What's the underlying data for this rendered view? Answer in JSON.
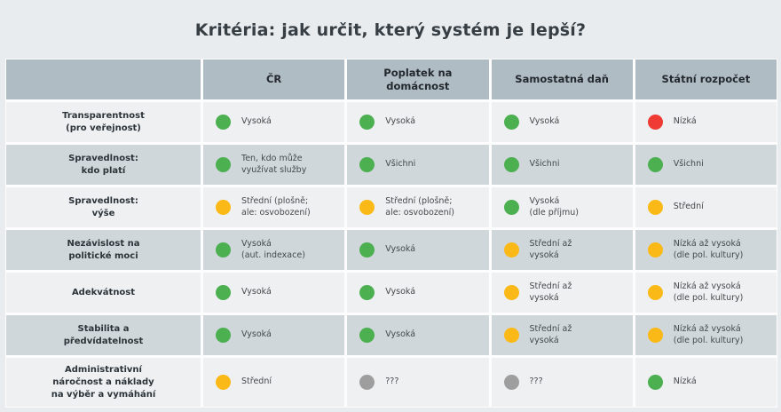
{
  "chart_data": {
    "type": "table",
    "title": "Kritéria: jak určit, který systém je lepší?",
    "columns": [
      "",
      "ČR",
      "Poplatek na\ndomácnost",
      "Samostatná daň",
      "Státní rozpočet"
    ],
    "legend_colors": {
      "green": "#4caf50",
      "yellow": "#fbb917",
      "red": "#ef3b33",
      "gray": "#9e9e9e"
    },
    "rows": [
      {
        "label": "Transparentnost\n(pro veřejnost)",
        "cells": [
          {
            "rating": "green",
            "text": "Vysoká"
          },
          {
            "rating": "green",
            "text": "Vysoká"
          },
          {
            "rating": "green",
            "text": "Vysoká"
          },
          {
            "rating": "red",
            "text": "Nízká"
          }
        ]
      },
      {
        "label": "Spravedlnost:\nkdo platí",
        "cells": [
          {
            "rating": "green",
            "text": "Ten, kdo může\nvyužívat služby"
          },
          {
            "rating": "green",
            "text": "Všichni"
          },
          {
            "rating": "green",
            "text": "Všichni"
          },
          {
            "rating": "green",
            "text": "Všichni"
          }
        ]
      },
      {
        "label": "Spravedlnost:\nvýše",
        "cells": [
          {
            "rating": "yellow",
            "text": "Střední (plošně;\nale: osvobození)"
          },
          {
            "rating": "yellow",
            "text": "Střední (plošně;\nale: osvobození)"
          },
          {
            "rating": "green",
            "text": "Vysoká\n(dle příjmu)"
          },
          {
            "rating": "yellow",
            "text": "Střední"
          }
        ]
      },
      {
        "label": "Nezávislost na\npolitické moci",
        "cells": [
          {
            "rating": "green",
            "text": "Vysoká\n(aut. indexace)"
          },
          {
            "rating": "green",
            "text": "Vysoká"
          },
          {
            "rating": "yellow",
            "text": "Střední až\nvysoká"
          },
          {
            "rating": "yellow",
            "text": "Nízká až vysoká\n(dle pol. kultury)"
          }
        ]
      },
      {
        "label": "Adekvátnost",
        "cells": [
          {
            "rating": "green",
            "text": "Vysoká"
          },
          {
            "rating": "green",
            "text": "Vysoká"
          },
          {
            "rating": "yellow",
            "text": "Střední až\nvysoká"
          },
          {
            "rating": "yellow",
            "text": "Nízká až vysoká\n(dle pol. kultury)"
          }
        ]
      },
      {
        "label": "Stabilita a\npředvídatelnost",
        "cells": [
          {
            "rating": "green",
            "text": "Vysoká"
          },
          {
            "rating": "green",
            "text": "Vysoká"
          },
          {
            "rating": "yellow",
            "text": "Střední až\nvysoká"
          },
          {
            "rating": "yellow",
            "text": "Nízká až vysoká\n(dle pol. kultury)"
          }
        ]
      },
      {
        "label": "Administrativní\nnáročnost a náklady\nna výběr a vymáhání",
        "cells": [
          {
            "rating": "yellow",
            "text": "Střední"
          },
          {
            "rating": "gray",
            "text": "???"
          },
          {
            "rating": "gray",
            "text": "???"
          },
          {
            "rating": "green",
            "text": "Nízká"
          }
        ]
      }
    ]
  }
}
